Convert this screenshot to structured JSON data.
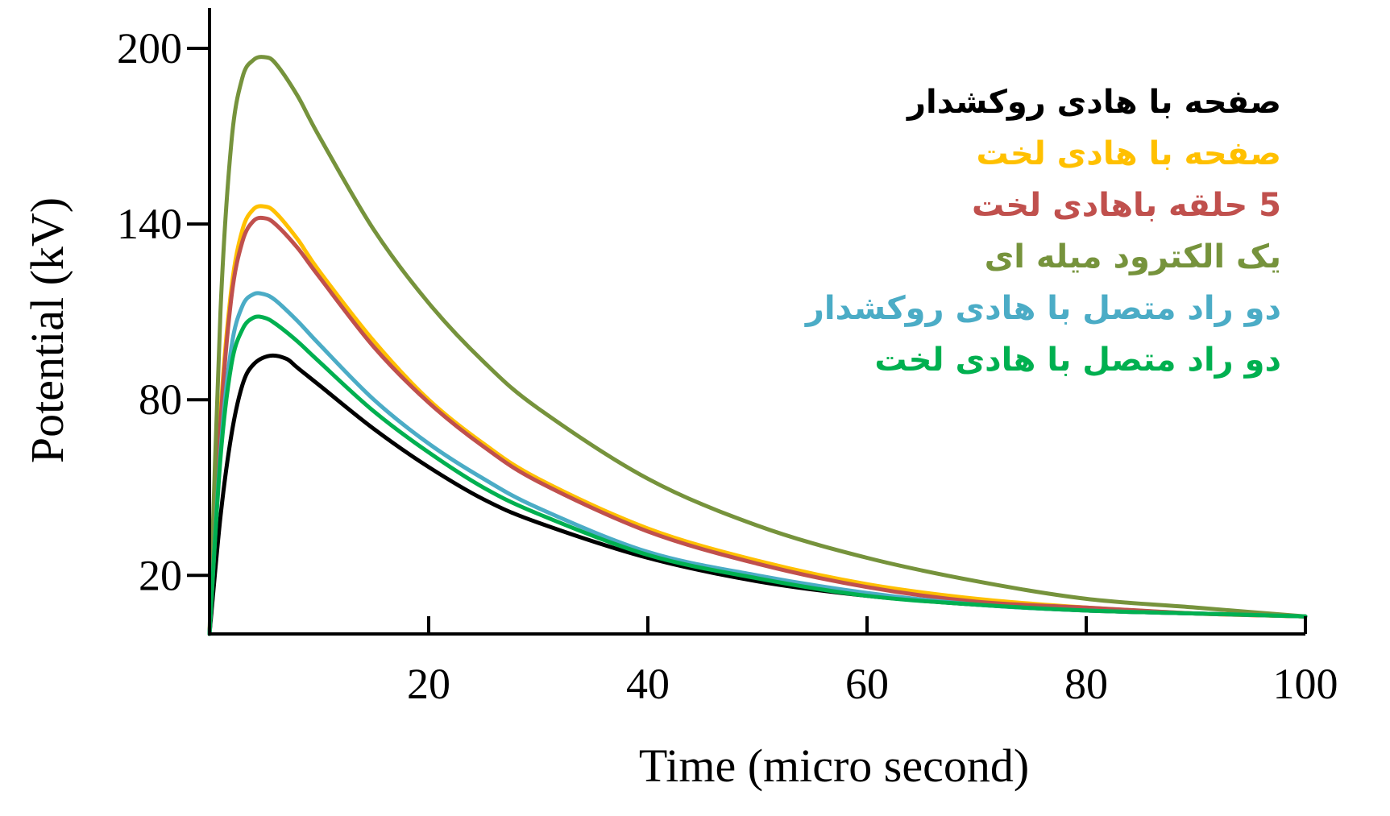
{
  "chart_data": {
    "type": "line",
    "title": "",
    "xlabel": "Time (micro second)",
    "ylabel": "Potential (kV)",
    "xlim": [
      0,
      100
    ],
    "ylim": [
      0,
      200
    ],
    "x_ticks": [
      20,
      40,
      60,
      80,
      100
    ],
    "y_ticks": [
      20,
      80,
      140,
      200
    ],
    "grid": false,
    "legend_position": "top-right",
    "series": [
      {
        "name": "صفحه با هادی روکشدار",
        "color": "#000000",
        "x": [
          0,
          1,
          2,
          3,
          4,
          5.5,
          7,
          8,
          10,
          15,
          20,
          25,
          30,
          40,
          50,
          60,
          70,
          80,
          90,
          100
        ],
        "y": [
          0,
          40,
          68,
          85,
          92,
          95,
          94,
          91,
          85,
          70,
          57,
          46,
          38,
          26,
          18,
          13,
          10,
          8,
          7,
          6
        ]
      },
      {
        "name": "صفحه با هادی لخت",
        "color": "#FFC000",
        "x": [
          0,
          1,
          2,
          3,
          4,
          5,
          6,
          8,
          10,
          15,
          20,
          25,
          30,
          40,
          50,
          60,
          70,
          80,
          90,
          100
        ],
        "y": [
          0,
          75,
          118,
          138,
          145,
          146,
          144,
          135,
          124,
          100,
          80,
          65,
          53,
          36,
          25,
          17,
          12,
          9,
          7,
          6
        ]
      },
      {
        "name": "5 حلقه باهادی لخت",
        "color": "#C0504D",
        "x": [
          0,
          1,
          2,
          3,
          4,
          5,
          6,
          8,
          10,
          15,
          20,
          25,
          30,
          40,
          50,
          60,
          70,
          80,
          90,
          100
        ],
        "y": [
          0,
          72,
          115,
          134,
          141,
          142,
          140,
          132,
          122,
          98,
          79,
          64,
          52,
          35,
          24,
          16,
          11,
          9,
          7,
          6
        ]
      },
      {
        "name": "یک الکترود میله ای",
        "color": "#76933C",
        "x": [
          0,
          1,
          2,
          3,
          4,
          5,
          6,
          8,
          10,
          15,
          20,
          25,
          30,
          40,
          50,
          60,
          70,
          80,
          90,
          100
        ],
        "y": [
          0,
          110,
          168,
          190,
          196,
          197,
          195,
          184,
          170,
          138,
          113,
          93,
          77,
          53,
          37,
          26,
          18,
          12,
          9,
          6
        ]
      },
      {
        "name": "دو راد متصل با هادی روکشدار",
        "color": "#4BACC6",
        "x": [
          0,
          1,
          2,
          3,
          4,
          5,
          6,
          8,
          10,
          15,
          20,
          25,
          30,
          40,
          50,
          60,
          70,
          80,
          90,
          100
        ],
        "y": [
          0,
          62,
          98,
          112,
          116,
          116,
          114,
          107,
          99,
          80,
          65,
          53,
          43,
          28,
          20,
          14,
          10,
          8,
          7,
          6
        ]
      },
      {
        "name": "دو راد متصل با هادی لخت",
        "color": "#00B050",
        "x": [
          0,
          1,
          2,
          3,
          4,
          5,
          6,
          8,
          10,
          15,
          20,
          25,
          30,
          40,
          50,
          60,
          70,
          80,
          90,
          100
        ],
        "y": [
          0,
          60,
          92,
          104,
          108,
          108,
          106,
          100,
          93,
          76,
          62,
          50,
          41,
          27,
          19,
          13,
          10,
          8,
          7,
          6
        ]
      }
    ]
  }
}
